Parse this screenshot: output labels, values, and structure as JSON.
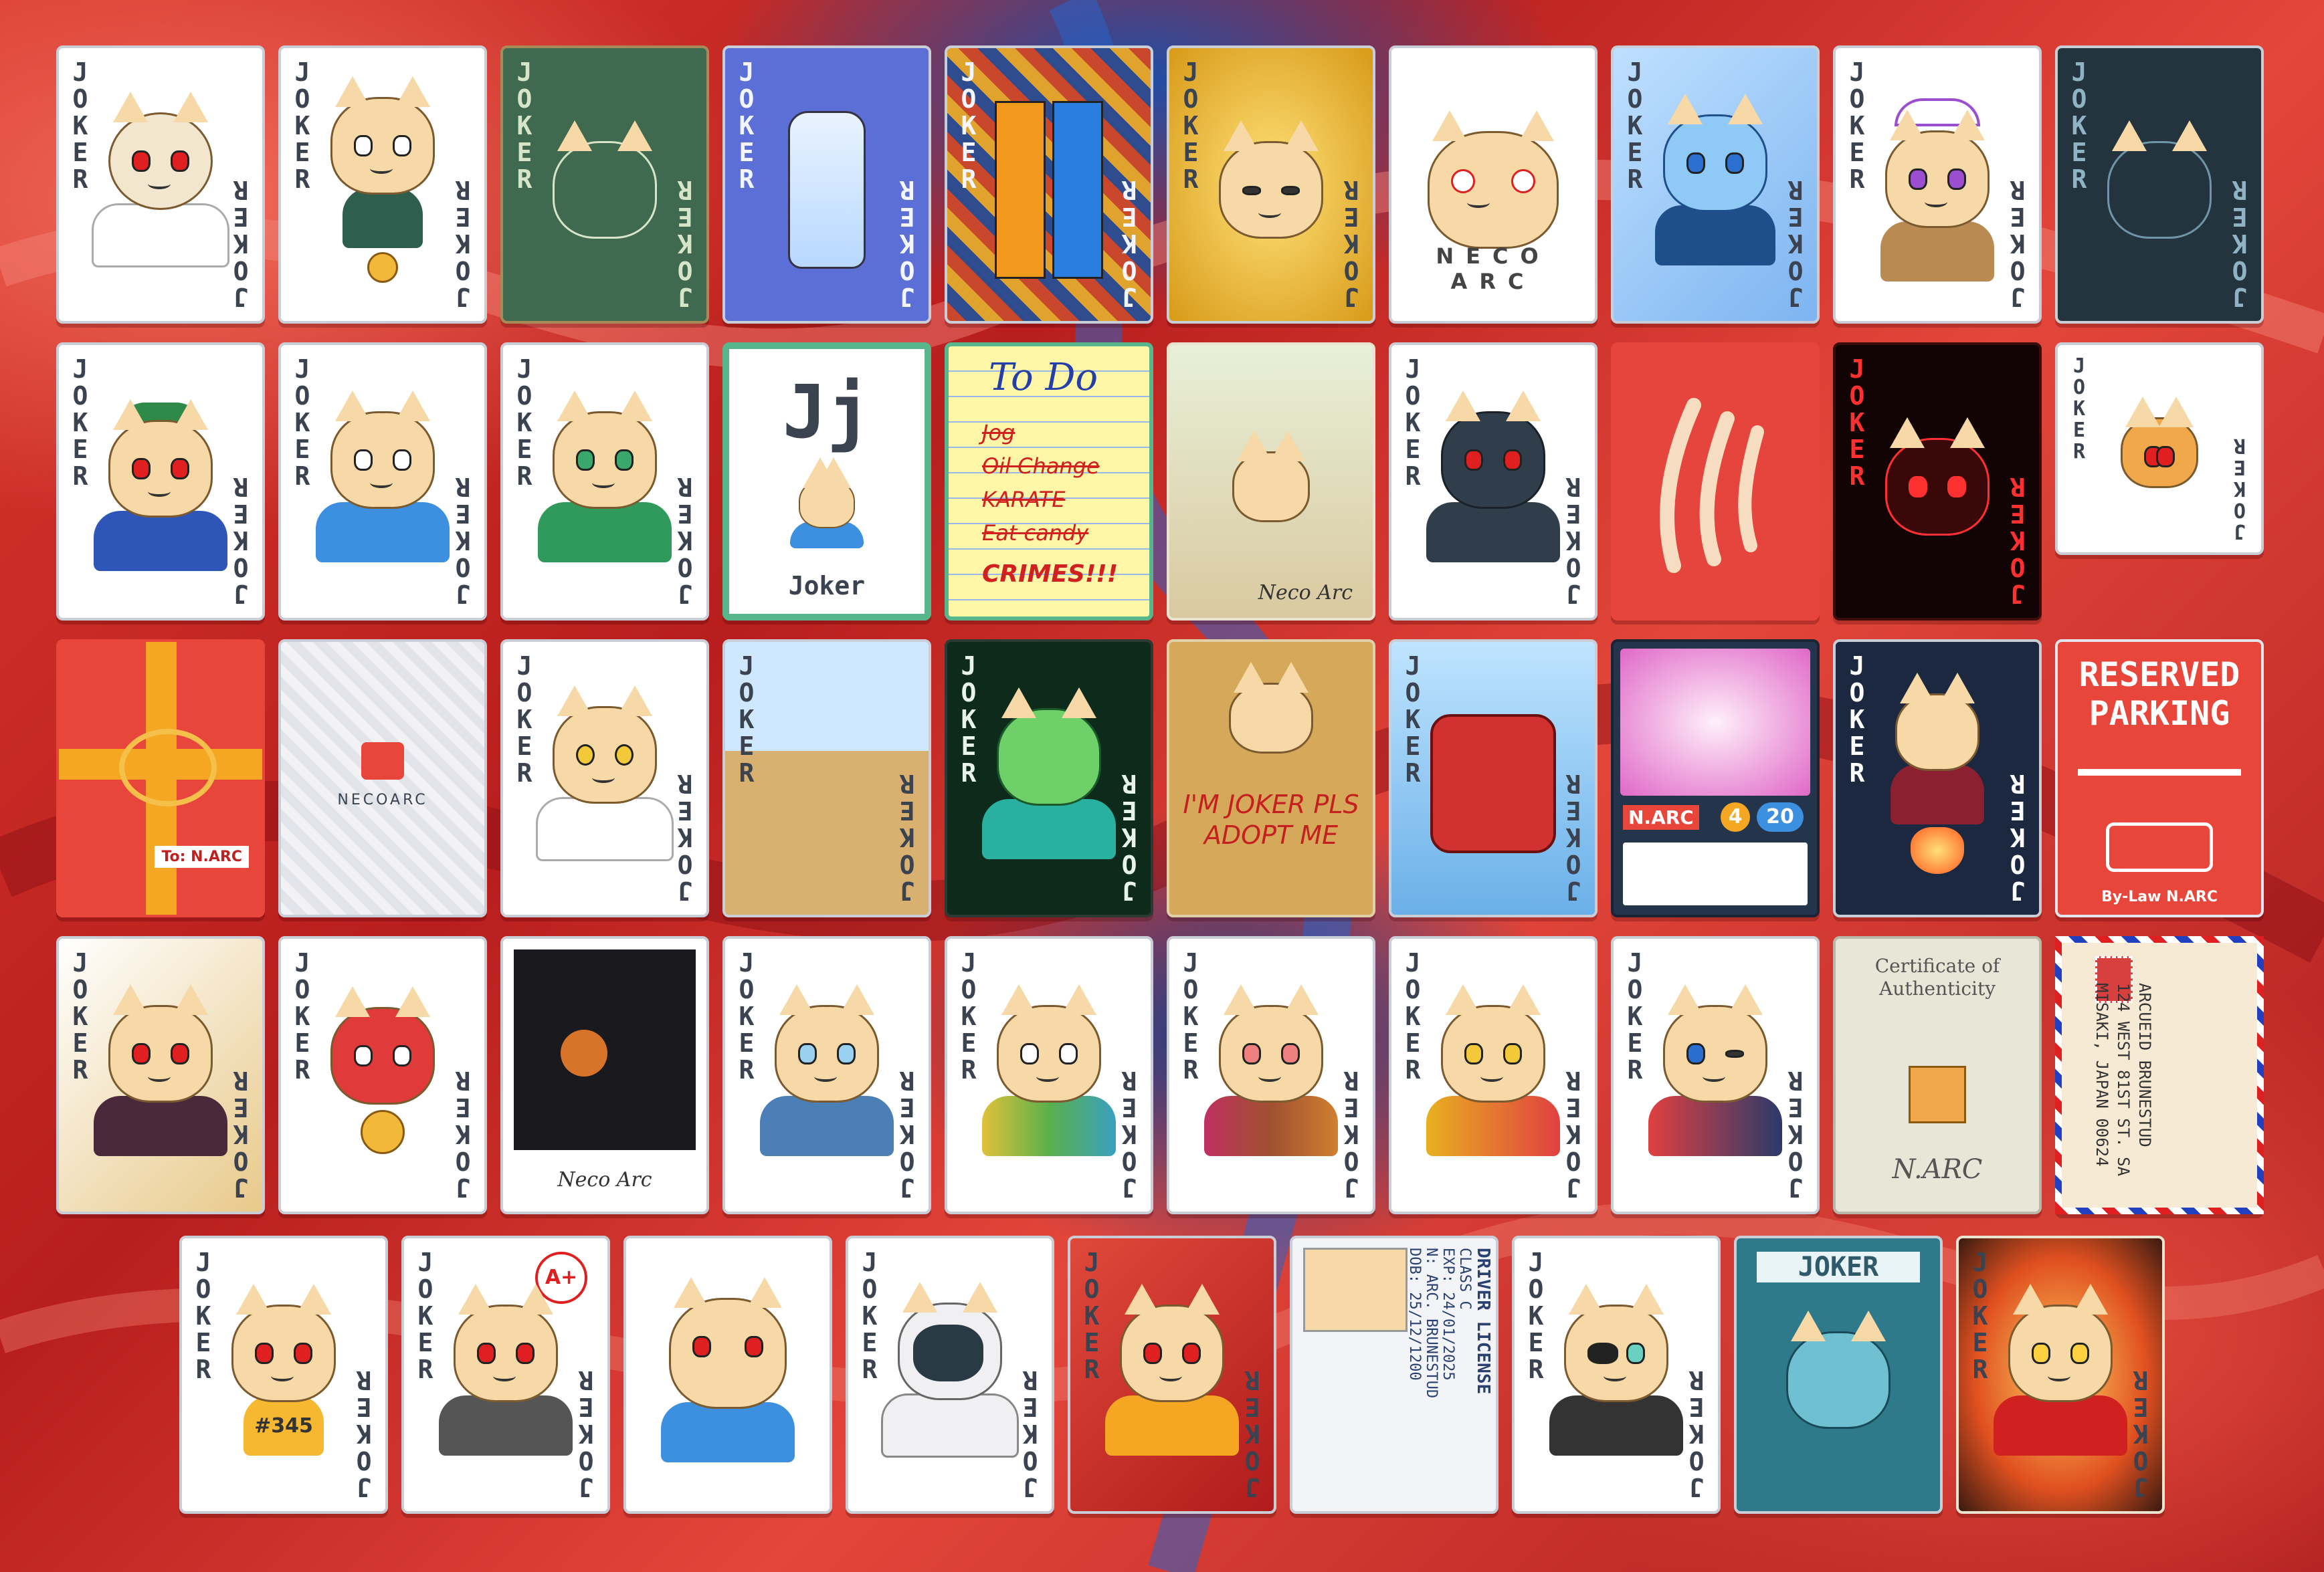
{
  "colors": {
    "background_red": "#c8281f",
    "background_blue": "#1d4fa8",
    "card_border": "#c9cdd6",
    "joker_text": "#3b4250"
  },
  "joker_text": "JOKER",
  "cards": {
    "r1c1": {
      "theme": "old neco bald"
    },
    "r1c2": {
      "theme": "coin medallion"
    },
    "r1c3": {
      "theme": "green chalkboard"
    },
    "r1c4": {
      "theme": "bottle"
    },
    "r1c5": {
      "theme": "pants"
    },
    "r1c6": {
      "theme": "gold"
    },
    "r1c7": {
      "theme": "dizzy",
      "text": "NECO ARC"
    },
    "r1c8": {
      "theme": "ice"
    },
    "r1c9": {
      "theme": "crown"
    },
    "r1c10": {
      "theme": "constellation"
    },
    "r2c1": {
      "theme": "green cap"
    },
    "r2c2": {
      "theme": "jester red"
    },
    "r2c3": {
      "theme": "jester green"
    },
    "r2c4": {
      "big_letter": "Jj",
      "caption": "Joker"
    },
    "r2c5": {
      "title": "To Do",
      "items": [
        "Jog",
        "Oil Change",
        "KARATE",
        "Eat candy",
        "CRIMES!!!"
      ]
    },
    "r2c6": {
      "signature": "Neco Arc"
    },
    "r2c7": {
      "theme": "hoodie"
    },
    "r2c8": {
      "theme": "claw marks"
    },
    "r2c9": {
      "theme": "red neon"
    },
    "r2c10": {
      "theme": "orange pixel"
    },
    "r3c1": {
      "tag": "To: N.ARC"
    },
    "r3c2": {
      "text": "NECOARC"
    },
    "r3c3": {
      "theme": "bloody"
    },
    "r3c4": {
      "theme": "street"
    },
    "r3c5": {
      "theme": "matrix"
    },
    "r3c6": {
      "sign": "I'M JOKER PLS ADOPT ME"
    },
    "r3c7": {
      "theme": "airplane"
    },
    "r3c8": {
      "name": "N.ARC",
      "stat1": "4",
      "stat2": "20"
    },
    "r3c9": {
      "theme": "rocket"
    },
    "r3c10": {
      "title": "RESERVED PARKING",
      "footer": "By-Law N.ARC"
    },
    "r4c1": {
      "theme": "golden"
    },
    "r4c2": {
      "theme": "luchador"
    },
    "r4c3": {
      "caption": "Neco Arc"
    },
    "r4c4": {
      "theme": "jester blue"
    },
    "r4c5": {
      "theme": "jester rainbow"
    },
    "r4c6": {
      "theme": "jester warm"
    },
    "r4c7": {
      "theme": "jester yellow"
    },
    "r4c8": {
      "theme": "jester wink"
    },
    "r4c9": {
      "title": "Certificate of Authenticity",
      "signature": "N.ARC"
    },
    "r4c10": {
      "address": [
        "ARCUEID BRUNESTUD",
        "124 WEST 81ST ST. SA",
        "MISAKI, JAPAN 00624"
      ]
    },
    "r5c1": {
      "jersey": "#345"
    },
    "r5c2": {
      "grade": "A+"
    },
    "r5c3": {
      "theme": "glitch"
    },
    "r5c4": {
      "theme": "astronaut"
    },
    "r5c5": {
      "theme": "red marble"
    },
    "r5c6": {
      "title": "DRIVER LICENSE",
      "class": "CLASS C",
      "exp": "EXP: 24/01/2025",
      "name": "N: ARC. BRUNESTUD",
      "dob": "DOB: 25/12/1200"
    },
    "r5c7": {
      "theme": "eyepatch"
    },
    "r5c8": {
      "title": "JOKER"
    },
    "r5c9": {
      "theme": "burning"
    }
  }
}
